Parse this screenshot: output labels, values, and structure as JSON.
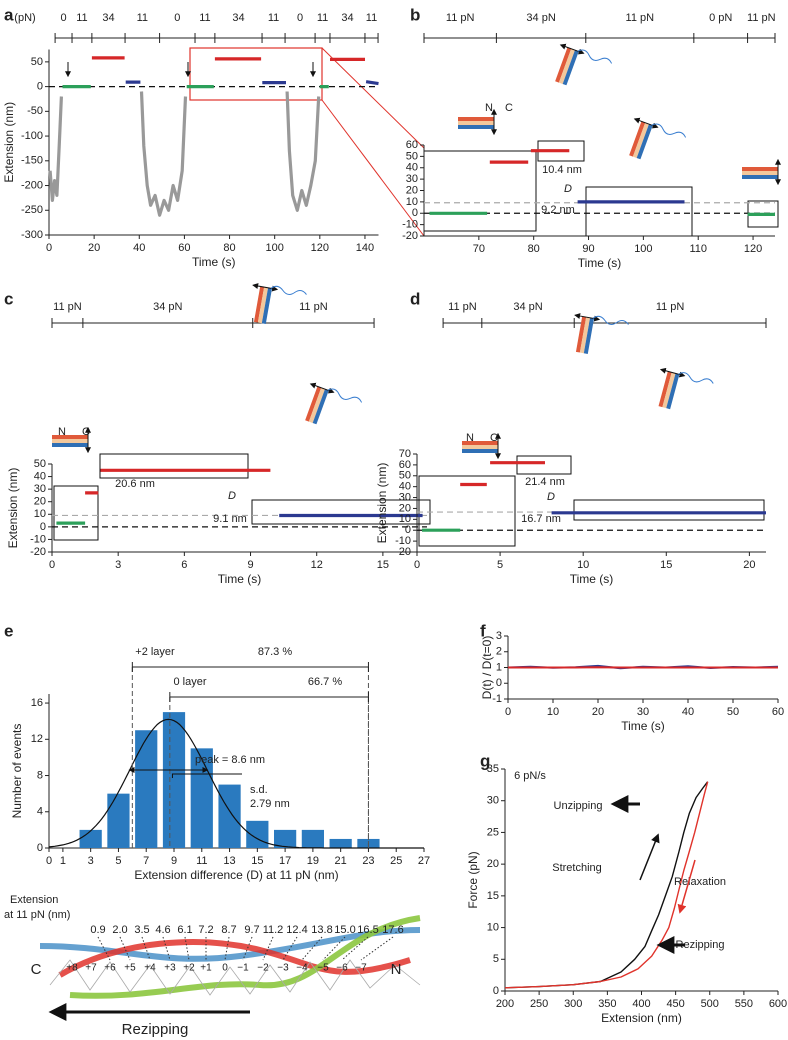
{
  "chart_data": [
    {
      "panel": "a",
      "type": "line",
      "xlabel": "Time (s)",
      "ylabel": "Extension (nm)",
      "xlim": [
        0,
        146
      ],
      "xticks": [
        0,
        20,
        40,
        60,
        80,
        100,
        120,
        140
      ],
      "ylim": [
        -300,
        75
      ],
      "yticks": [
        -300,
        -250,
        -200,
        -150,
        -100,
        -50,
        0,
        50
      ],
      "force_unit": "(pN)",
      "force_labels": [
        "0",
        "11",
        "34",
        "11",
        "0",
        "11",
        "34",
        "11",
        "0",
        "11",
        "34",
        "11"
      ],
      "force_bounds": [
        2.7,
        10.2,
        19,
        33.7,
        49,
        64.7,
        73.5,
        94.4,
        104.6,
        117.9,
        124.5,
        140,
        145.8
      ],
      "reference_lines": [
        0
      ],
      "series": [
        {
          "color": "#999999",
          "x": [
            0.5,
            1.5,
            2.5,
            3.5,
            4.5,
            5.5,
            null,
            41,
            42,
            43.5,
            45,
            47,
            49,
            51,
            53,
            55,
            57,
            59,
            60.5,
            null,
            105.5,
            106.5,
            108,
            110,
            112,
            114,
            116,
            118,
            119.5
          ],
          "values": [
            -170,
            -230,
            -190,
            -220,
            -120,
            -20,
            null,
            -10,
            -120,
            -200,
            -240,
            -220,
            -260,
            -230,
            -250,
            -200,
            -230,
            -170,
            -20,
            null,
            -10,
            -130,
            -220,
            -250,
            -210,
            -240,
            -200,
            -150,
            -20
          ]
        },
        {
          "color": "#2ca05a",
          "x": [
            6,
            18.5,
            null,
            61,
            73,
            null,
            120,
            124
          ],
          "values": [
            0,
            0,
            null,
            0,
            0,
            null,
            0,
            0
          ]
        },
        {
          "color": "#d62728",
          "x": [
            19,
            33.5,
            null,
            73.5,
            94,
            null,
            124.5,
            140
          ],
          "values": [
            58,
            58,
            null,
            56,
            56,
            null,
            55,
            55
          ]
        },
        {
          "color": "#2b3990",
          "x": [
            34,
            40.5,
            null,
            94.5,
            105,
            null,
            140.5,
            146
          ],
          "values": [
            9,
            9,
            null,
            8,
            8,
            null,
            10,
            6
          ]
        }
      ]
    },
    {
      "panel": "b",
      "type": "line",
      "xlabel": "Time (s)",
      "xlim": [
        60,
        124
      ],
      "xticks": [
        70,
        80,
        90,
        100,
        110,
        120
      ],
      "ylim": [
        -20,
        60
      ],
      "yticks": [
        -20,
        -10,
        0,
        10,
        20,
        30,
        40,
        50,
        60
      ],
      "force_labels": [
        "11 pN",
        "34 pN",
        "11 pN",
        "0 pN",
        "11 pN"
      ],
      "force_bounds": [
        60,
        73.2,
        89.5,
        109.2,
        119,
        124
      ],
      "reference_lines": [
        0,
        9.2
      ],
      "annotations": [
        "N",
        "C",
        "10.4 nm",
        "D",
        "9.2 nm"
      ],
      "series": [
        {
          "color": "#2ca05a",
          "x": [
            61,
            71.5,
            null,
            119,
            124
          ],
          "values": [
            0,
            0,
            null,
            -1,
            -1
          ]
        },
        {
          "color": "#d62728",
          "x": [
            72,
            79,
            null,
            79.5,
            86.5
          ],
          "values": [
            45,
            45,
            null,
            55,
            55
          ]
        },
        {
          "color": "#2b3990",
          "x": [
            88,
            107.5
          ],
          "values": [
            10,
            10
          ]
        }
      ]
    },
    {
      "panel": "c",
      "type": "line",
      "xlabel": "Time (s)",
      "ylabel": "Extension (nm)",
      "xlim": [
        0,
        17
      ],
      "xticks": [
        0,
        3,
        6,
        9,
        12,
        15
      ],
      "ylim": [
        -20,
        50
      ],
      "yticks": [
        -20,
        -10,
        0,
        10,
        20,
        30,
        40,
        50
      ],
      "force_labels": [
        "11 pN",
        "34 pN",
        "11 pN"
      ],
      "force_bounds": [
        0,
        1.4,
        9.1,
        14.6
      ],
      "reference_lines": [
        0,
        9.1
      ],
      "annotations": [
        "N",
        "C",
        "20.6 nm",
        "D",
        "9.1 nm"
      ],
      "series": [
        {
          "color": "#2ca05a",
          "x": [
            0.2,
            1.5
          ],
          "values": [
            3,
            3
          ]
        },
        {
          "color": "#d62728",
          "x": [
            1.5,
            2.1,
            null,
            2.2,
            9.9
          ],
          "values": [
            27,
            27,
            null,
            45,
            45
          ]
        },
        {
          "color": "#2b3990",
          "x": [
            10.3,
            16.8
          ],
          "values": [
            9,
            9
          ]
        }
      ]
    },
    {
      "panel": "d",
      "type": "line",
      "xlabel": "Time (s)",
      "ylabel": "Extension (nm)",
      "xlim": [
        0,
        21
      ],
      "xticks": [
        0,
        5,
        10,
        15,
        20
      ],
      "ylim": [
        -20,
        70
      ],
      "yticks": [
        -20,
        -10,
        0,
        10,
        20,
        30,
        40,
        50,
        60,
        70
      ],
      "force_labels": [
        "11 pN",
        "34 pN",
        "11 pN"
      ],
      "force_bounds": [
        1.57,
        3.9,
        9.46,
        21
      ],
      "reference_lines": [
        0,
        16.7
      ],
      "annotations": [
        "N",
        "C",
        "21.4 nm",
        "D",
        "16.7 nm"
      ],
      "series": [
        {
          "color": "#2ca05a",
          "x": [
            0.3,
            2.6
          ],
          "values": [
            0,
            0
          ]
        },
        {
          "color": "#d62728",
          "x": [
            2.6,
            4.2,
            null,
            4.4,
            7.7
          ],
          "values": [
            42,
            42,
            null,
            62,
            62
          ]
        },
        {
          "color": "#2b3990",
          "x": [
            8.1,
            21
          ],
          "values": [
            16,
            16
          ]
        }
      ]
    },
    {
      "panel": "e",
      "type": "histogram",
      "xlabel": "Extension difference (D) at 11 pN (nm)",
      "ylabel": "Number of events",
      "color": "#2a7abf",
      "bins": [
        2,
        4,
        6,
        8,
        10,
        12,
        14,
        16,
        18,
        20,
        22,
        24
      ],
      "values": [
        2,
        6,
        13,
        15,
        11,
        7,
        3,
        2,
        2,
        1,
        1
      ],
      "xlim": [
        0,
        27
      ],
      "xticks": [
        0,
        1,
        3,
        5,
        7,
        9,
        11,
        13,
        15,
        17,
        19,
        21,
        23,
        25,
        27
      ],
      "ylim": [
        0,
        17
      ],
      "yticks": [
        0,
        4,
        8,
        12,
        16
      ],
      "ranges": [
        {
          "label": "+2 layer",
          "percent": "87.3 %",
          "start": 6,
          "end": 23
        },
        {
          "label": "0 layer",
          "percent": "66.7 %",
          "start": 8.7,
          "end": 23
        }
      ],
      "peak": 8.6,
      "peak_label": "peak = 8.6 nm",
      "sd": 2.79,
      "sd_labels": [
        "s.d.",
        "2.79 nm"
      ],
      "fit_amplitude": 14.2
    },
    {
      "panel": "f",
      "type": "line",
      "xlabel": "Time (s)",
      "ylabel": "D(t) / D(t=0)",
      "xlim": [
        0,
        60
      ],
      "xticks": [
        0,
        10,
        20,
        30,
        40,
        50,
        60
      ],
      "ylim": [
        -1,
        3
      ],
      "yticks": [
        -1,
        0,
        1,
        2,
        3
      ],
      "series": [
        {
          "color": "#2b3990",
          "x": [
            0,
            5,
            10,
            15,
            20,
            25,
            30,
            35,
            40,
            45,
            50,
            55,
            60
          ],
          "values": [
            1.0,
            1.05,
            0.98,
            1.02,
            1.1,
            0.95,
            1.05,
            1.0,
            1.08,
            0.97,
            1.03,
            1.0,
            1.05
          ]
        },
        {
          "color": "#d62728",
          "x": [
            0,
            5,
            10,
            15,
            20,
            25,
            30,
            35,
            40,
            45,
            50,
            55,
            60
          ],
          "values": [
            1.0,
            1.0,
            1.0,
            1.0,
            1.02,
            1.0,
            1.0,
            1.0,
            1.0,
            1.0,
            1.0,
            1.0,
            1.0
          ]
        }
      ]
    },
    {
      "panel": "g",
      "type": "line",
      "xlabel": "Extension (nm)",
      "ylabel": "Force (pN)",
      "xlim": [
        200,
        600
      ],
      "xticks": [
        200,
        250,
        300,
        350,
        400,
        450,
        500,
        550,
        600
      ],
      "ylim": [
        0,
        35
      ],
      "yticks": [
        0,
        5,
        10,
        15,
        20,
        25,
        30,
        35
      ],
      "annotations": [
        "6 pN/s",
        "Unzipping",
        "Stretching",
        "Relaxation",
        "Rezipping"
      ],
      "series": [
        {
          "color": "#111111",
          "x": [
            200,
            250,
            300,
            340,
            370,
            390,
            405,
            415,
            425,
            435,
            445,
            455,
            462,
            470,
            480,
            490,
            497
          ],
          "values": [
            0.5,
            0.7,
            1,
            1.5,
            3,
            5,
            7,
            9.5,
            12,
            15,
            18,
            22,
            25,
            28,
            30.5,
            32,
            33
          ]
        },
        {
          "color": "#e0332b",
          "x": [
            497,
            492,
            485,
            478,
            470,
            462,
            455,
            448,
            440,
            430,
            415,
            395,
            370,
            340,
            300,
            250,
            200
          ],
          "values": [
            33,
            31,
            28,
            25,
            22,
            19,
            16,
            13,
            10,
            8,
            5.5,
            3.5,
            2.2,
            1.5,
            1,
            0.7,
            0.5
          ]
        }
      ]
    }
  ],
  "diagram": {
    "label_lines": [
      "Extension",
      "at 11 pN (nm)"
    ],
    "extensions": [
      "0.9",
      "2.0",
      "3.5",
      "4.6",
      "6.1",
      "7.2",
      "8.7",
      "9.7",
      "11.2",
      "12.4",
      "13.8",
      "15.0",
      "16.5",
      "17.6"
    ],
    "highlighted": [
      6,
      13
    ],
    "highlight_color": "#e0332b",
    "layers": [
      "+8",
      "+7",
      "+6",
      "+5",
      "+4",
      "+3",
      "+2",
      "+1",
      "0",
      "−1",
      "−2",
      "−3",
      "−4",
      "−5",
      "−6",
      "−7"
    ],
    "ends": [
      "C",
      "N"
    ],
    "arrow_label": "Rezipping"
  }
}
